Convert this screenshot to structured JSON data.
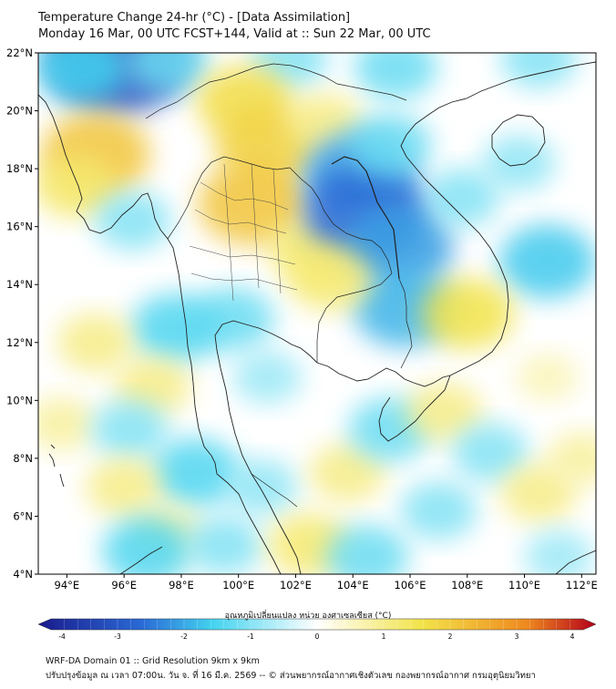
{
  "header": {
    "title_line1": "Temperature Change 24-hr (°C) - [Data Assimilation]",
    "title_line2": "Monday 16 Mar, 00 UTC FCST+144, Valid at :: Sun 22 Mar, 00 UTC"
  },
  "map": {
    "lat_range": [
      4,
      22
    ],
    "lon_range": [
      93,
      112.5
    ],
    "lat_ticks": [
      {
        "value": 22,
        "label": "22°N"
      },
      {
        "value": 20,
        "label": "20°N"
      },
      {
        "value": 18,
        "label": "18°N"
      },
      {
        "value": 16,
        "label": "16°N"
      },
      {
        "value": 14,
        "label": "14°N"
      },
      {
        "value": 12,
        "label": "12°N"
      },
      {
        "value": 10,
        "label": "10°N"
      },
      {
        "value": 8,
        "label": "8°N"
      },
      {
        "value": 6,
        "label": "6°N"
      },
      {
        "value": 4,
        "label": "4°N"
      }
    ],
    "lon_ticks": [
      {
        "value": 94,
        "label": "94°E"
      },
      {
        "value": 96,
        "label": "96°E"
      },
      {
        "value": 98,
        "label": "98°E"
      },
      {
        "value": 100,
        "label": "100°E"
      },
      {
        "value": 102,
        "label": "102°E"
      },
      {
        "value": 104,
        "label": "104°E"
      },
      {
        "value": 106,
        "label": "106°E"
      },
      {
        "value": 108,
        "label": "108°E"
      },
      {
        "value": 110,
        "label": "110°E"
      },
      {
        "value": 112,
        "label": "112°E"
      }
    ],
    "features": [
      {
        "lon": 95.8,
        "lat": 21.8,
        "value": -3.0
      },
      {
        "lon": 94.5,
        "lat": 21.5,
        "value": -1.5
      },
      {
        "lon": 97.5,
        "lat": 21.7,
        "value": -1.2
      },
      {
        "lon": 101.8,
        "lat": 21.8,
        "value": -1.0
      },
      {
        "lon": 105.5,
        "lat": 21.5,
        "value": -1.2
      },
      {
        "lon": 110.5,
        "lat": 21.8,
        "value": -1.0
      },
      {
        "lon": 95.0,
        "lat": 18.5,
        "value": 2.0
      },
      {
        "lon": 94.3,
        "lat": 17.4,
        "value": 1.2
      },
      {
        "lon": 96.3,
        "lat": 16.2,
        "value": -1.0
      },
      {
        "lon": 100.2,
        "lat": 20.3,
        "value": 1.6
      },
      {
        "lon": 101.0,
        "lat": 18.8,
        "value": 1.8
      },
      {
        "lon": 100.5,
        "lat": 16.8,
        "value": 2.0
      },
      {
        "lon": 103.0,
        "lat": 19.6,
        "value": 1.0
      },
      {
        "lon": 102.5,
        "lat": 15.2,
        "value": 1.2
      },
      {
        "lon": 104.2,
        "lat": 17.8,
        "value": -2.0
      },
      {
        "lon": 104.5,
        "lat": 16.5,
        "value": -2.5
      },
      {
        "lon": 105.6,
        "lat": 15.3,
        "value": -2.0
      },
      {
        "lon": 105.8,
        "lat": 13.2,
        "value": -1.8
      },
      {
        "lon": 105.3,
        "lat": 18.8,
        "value": -1.2
      },
      {
        "lon": 107.8,
        "lat": 17.0,
        "value": -1.0
      },
      {
        "lon": 110.8,
        "lat": 14.8,
        "value": -1.6
      },
      {
        "lon": 109.8,
        "lat": 18.2,
        "value": -0.9
      },
      {
        "lon": 103.2,
        "lat": 14.2,
        "value": 1.2
      },
      {
        "lon": 108.0,
        "lat": 13.0,
        "value": 1.5
      },
      {
        "lon": 99.8,
        "lat": 12.8,
        "value": -1.2
      },
      {
        "lon": 97.8,
        "lat": 12.5,
        "value": -1.4
      },
      {
        "lon": 101.0,
        "lat": 10.8,
        "value": -0.8
      },
      {
        "lon": 97.0,
        "lat": 10.5,
        "value": 1.0
      },
      {
        "lon": 95.0,
        "lat": 12.0,
        "value": 1.0
      },
      {
        "lon": 93.8,
        "lat": 9.2,
        "value": 0.8
      },
      {
        "lon": 96.2,
        "lat": 9.0,
        "value": -1.0
      },
      {
        "lon": 98.5,
        "lat": 7.5,
        "value": -1.4
      },
      {
        "lon": 96.0,
        "lat": 7.0,
        "value": 1.0
      },
      {
        "lon": 97.5,
        "lat": 5.5,
        "value": 0.8
      },
      {
        "lon": 96.8,
        "lat": 4.8,
        "value": -1.4
      },
      {
        "lon": 99.5,
        "lat": 5.0,
        "value": -1.0
      },
      {
        "lon": 100.8,
        "lat": 7.0,
        "value": -0.9
      },
      {
        "lon": 102.5,
        "lat": 5.0,
        "value": 1.2
      },
      {
        "lon": 103.8,
        "lat": 7.5,
        "value": 1.0
      },
      {
        "lon": 104.5,
        "lat": 4.6,
        "value": -1.2
      },
      {
        "lon": 105.3,
        "lat": 9.0,
        "value": -1.2
      },
      {
        "lon": 107.2,
        "lat": 9.6,
        "value": 1.0
      },
      {
        "lon": 108.8,
        "lat": 8.2,
        "value": -1.0
      },
      {
        "lon": 107.0,
        "lat": 6.2,
        "value": -1.0
      },
      {
        "lon": 110.5,
        "lat": 6.8,
        "value": 1.0
      },
      {
        "lon": 110.8,
        "lat": 10.8,
        "value": 0.6
      },
      {
        "lon": 111.2,
        "lat": 4.6,
        "value": -0.8
      },
      {
        "lon": 112.0,
        "lat": 8.0,
        "value": 0.8
      }
    ]
  },
  "colorbar": {
    "label": "อุณหภูมิเปลี่ยนแปลง หน่วย องศาเซลเซียส (°C)",
    "min": -4,
    "max": 4,
    "ticks": [
      "-4",
      "-3",
      "-2",
      "-1",
      "0",
      "1",
      "2",
      "3",
      "4"
    ],
    "colors": {
      "cold_extreme": "#1a1a8c",
      "cold": "#2a6bd6",
      "cool": "#43d3ef",
      "neutral": "#ffffff",
      "warm": "#f2e34a",
      "hot": "#ef8a1e",
      "hot_extreme": "#b3001b"
    }
  },
  "footer": {
    "line1": "WRF-DA Domain 01 :: Grid Resolution 9km x 9km",
    "line2": "ปรับปรุงข้อมูล ณ เวลา 07:00น. วัน จ. ที่ 16 มี.ค. 2569 -- © ส่วนพยากรณ์อากาศเชิงตัวเลข กองพยากรณ์อากาศ กรมอุตุนิยมวิทยา"
  }
}
